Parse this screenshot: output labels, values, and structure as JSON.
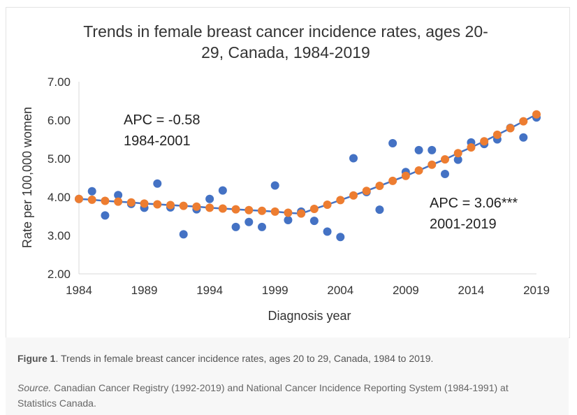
{
  "chart_data": {
    "type": "scatter",
    "title": "Trends in female breast cancer incidence rates, ages 20-29, Canada, 1984-2019",
    "xlabel": "Diagnosis year",
    "ylabel": "Rate per 100,000 women",
    "xlim": [
      1984,
      2019
    ],
    "ylim": [
      2.0,
      7.0
    ],
    "x_ticks": [
      "1984",
      "1989",
      "1994",
      "1999",
      "2004",
      "2009",
      "2014",
      "2019"
    ],
    "y_ticks": [
      "2.00",
      "3.00",
      "4.00",
      "5.00",
      "6.00",
      "7.00"
    ],
    "grid": false,
    "legend": "none",
    "colors": {
      "observed": "#4472C4",
      "fitted": "#ED7D31"
    },
    "series": [
      {
        "x": [
          1984,
          1985,
          1986,
          1987,
          1988,
          1989,
          1990,
          1991,
          1992,
          1993,
          1994,
          1995,
          1996,
          1997,
          1998,
          1999,
          2000,
          2001,
          2002,
          2003,
          2004,
          2005,
          2006,
          2007,
          2008,
          2009,
          2010,
          2011,
          2012,
          2013,
          2014,
          2015,
          2016,
          2017,
          2018,
          2019
        ],
        "y": [
          3.95,
          4.15,
          3.52,
          4.05,
          3.82,
          3.72,
          4.35,
          3.73,
          3.03,
          3.68,
          3.95,
          4.17,
          3.22,
          3.35,
          3.22,
          4.3,
          3.4,
          3.62,
          3.38,
          3.1,
          2.96,
          5.01,
          4.13,
          3.67,
          5.4,
          4.65,
          5.22,
          5.22,
          4.6,
          4.97,
          5.42,
          5.38,
          5.5,
          5.8,
          5.55,
          6.07
        ]
      },
      {
        "x": [
          1984,
          1985,
          1986,
          1987,
          1988,
          1989,
          1990,
          1991,
          1992,
          1993,
          1994,
          1995,
          1996,
          1997,
          1998,
          1999,
          2000,
          2001,
          2002,
          2003,
          2004,
          2005,
          2006,
          2007,
          2008,
          2009,
          2010,
          2011,
          2012,
          2013,
          2014,
          2015,
          2016,
          2017,
          2018,
          2019
        ],
        "y": [
          3.95,
          3.93,
          3.9,
          3.88,
          3.86,
          3.83,
          3.81,
          3.79,
          3.77,
          3.75,
          3.72,
          3.7,
          3.68,
          3.66,
          3.64,
          3.62,
          3.59,
          3.57,
          3.69,
          3.8,
          3.92,
          4.04,
          4.16,
          4.29,
          4.42,
          4.55,
          4.69,
          4.84,
          4.98,
          5.14,
          5.29,
          5.45,
          5.62,
          5.79,
          5.97,
          6.15
        ]
      }
    ],
    "annotations": [
      {
        "line1": "APC = -0.58",
        "line2": "1984-2001"
      },
      {
        "line1": "APC = 3.06***",
        "line2": "2001-2019"
      }
    ]
  },
  "caption": {
    "figure_label": "Figure 1",
    "figure_text": ". Trends in female breast cancer incidence rates, ages 20 to 29, Canada, 1984 to 2019.",
    "source_label": "Source.",
    "source_text": " Canadian Cancer Registry (1992-2019) and National Cancer Incidence Reporting System (1984-1991) at Statistics Canada."
  }
}
